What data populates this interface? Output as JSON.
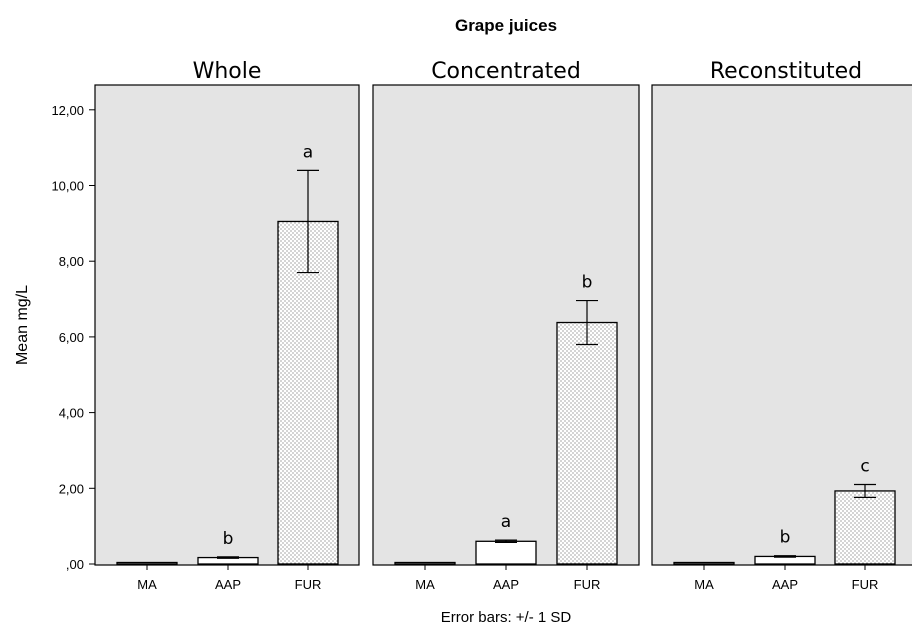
{
  "chart_data": {
    "type": "bar",
    "title": "Grape juices",
    "ylabel": "Mean mg/L",
    "footnote": "Error bars:  +/- 1 SD",
    "ylim": [
      0,
      12.5
    ],
    "yticks": [
      ",00",
      "2,00",
      "4,00",
      "6,00",
      "8,00",
      "10,00",
      "12,00"
    ],
    "ytick_values": [
      0,
      2,
      4,
      6,
      8,
      10,
      12
    ],
    "categories": [
      "MA",
      "AAP",
      "FUR"
    ],
    "panels": [
      {
        "name": "Whole",
        "values": [
          0.0,
          0.17,
          9.05
        ],
        "sd": [
          0.0,
          0.02,
          1.35
        ],
        "letters": [
          "",
          "b",
          "a"
        ]
      },
      {
        "name": "Concentrated",
        "values": [
          0.0,
          0.6,
          6.38
        ],
        "sd": [
          0.0,
          0.03,
          0.58
        ],
        "letters": [
          "",
          "a",
          "b"
        ]
      },
      {
        "name": "Reconstituted",
        "values": [
          0.0,
          0.2,
          1.93
        ],
        "sd": [
          0.0,
          0.02,
          0.17
        ],
        "letters": [
          "",
          "b",
          "c"
        ]
      }
    ],
    "bar_fill": [
      "#ffffff",
      "#ffffff",
      "dotted"
    ],
    "panel_background": "#e4e4e4",
    "grid": false,
    "legend": "none"
  }
}
